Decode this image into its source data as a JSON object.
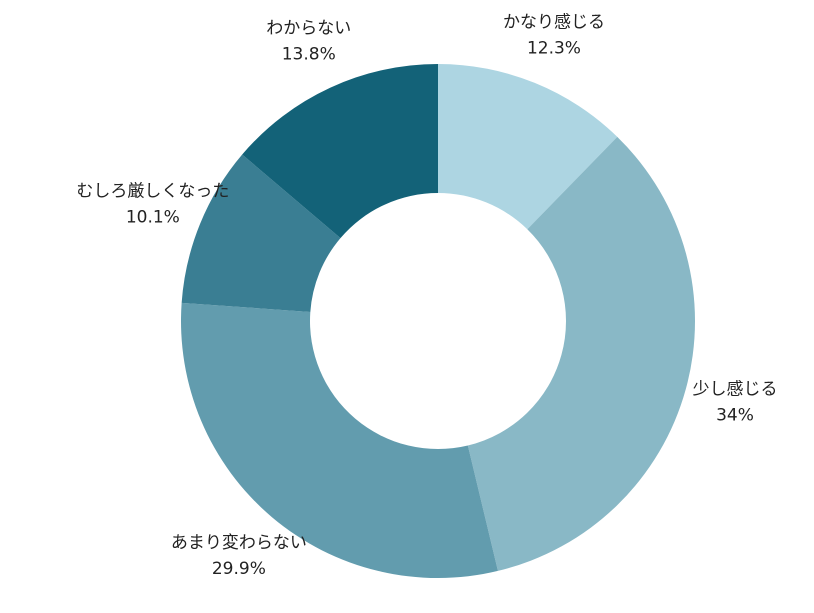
{
  "chart_data": {
    "type": "donut",
    "categories": [
      "かなり感じる",
      "少し感じる",
      "あまり変わらない",
      "むしろ厳しくなった",
      "わからない"
    ],
    "values": [
      12.3,
      34,
      29.9,
      10.1,
      13.8
    ],
    "value_labels": [
      "12.3%",
      "34%",
      "29.9%",
      "10.1%",
      "13.8%"
    ],
    "colors": [
      "#add5e2",
      "#89b8c6",
      "#629cae",
      "#3a7e93",
      "#136278"
    ]
  }
}
